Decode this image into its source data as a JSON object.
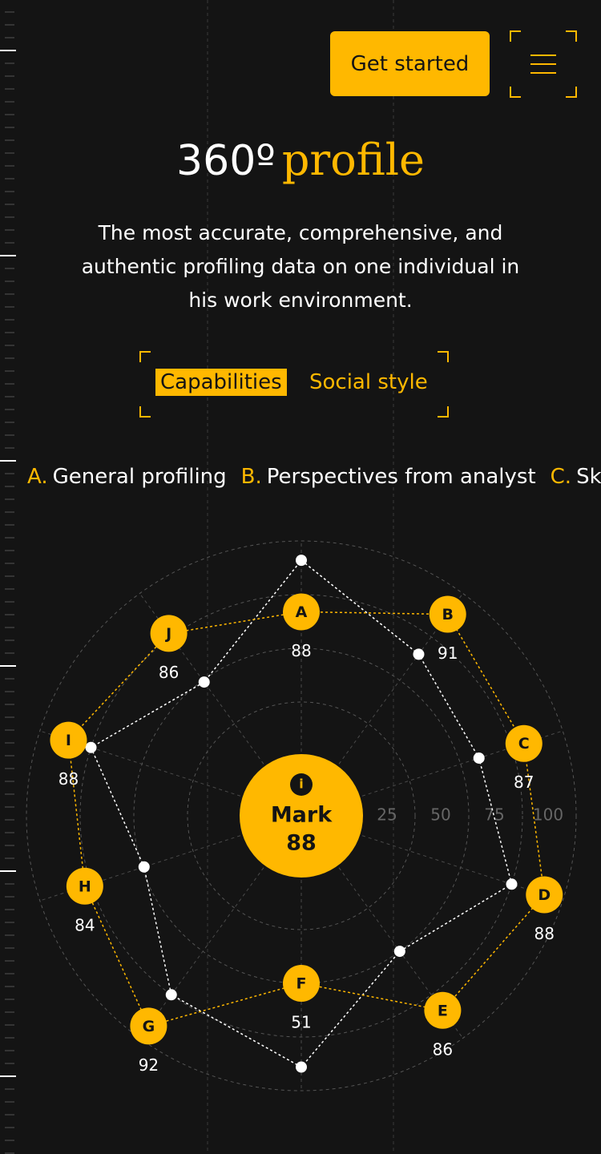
{
  "header": {
    "button": "Get started"
  },
  "hero": {
    "title": "360º",
    "title_accent": "profile",
    "description": "The most accurate, comprehensive, and authentic profiling data on one individual in his work environment."
  },
  "tabs": [
    "Capabilities",
    "Social style"
  ],
  "legend": [
    {
      "letter": "A.",
      "label": "General profiling"
    },
    {
      "letter": "B.",
      "label": "Perspectives from analyst"
    },
    {
      "letter": "C.",
      "label": "Ski"
    }
  ],
  "chart_data": {
    "type": "radar",
    "center": {
      "info": "i",
      "name": "Mark",
      "score": 88
    },
    "rlim": [
      0,
      100
    ],
    "rticks": [
      25,
      50,
      75,
      100
    ],
    "categories": [
      "A",
      "B",
      "C",
      "D",
      "E",
      "F",
      "G",
      "H",
      "I",
      "J"
    ],
    "scores": [
      88,
      91,
      87,
      88,
      86,
      51,
      92,
      84,
      88,
      86
    ],
    "nodes": {
      "color": "#ffb800",
      "values": [
        67,
        88,
        81,
        91,
        84,
        50,
        93,
        78,
        86,
        77
      ]
    },
    "dots": {
      "color": "#ffffff",
      "values": [
        91,
        65,
        59,
        75,
        50,
        89,
        75,
        49,
        75,
        49
      ]
    }
  }
}
